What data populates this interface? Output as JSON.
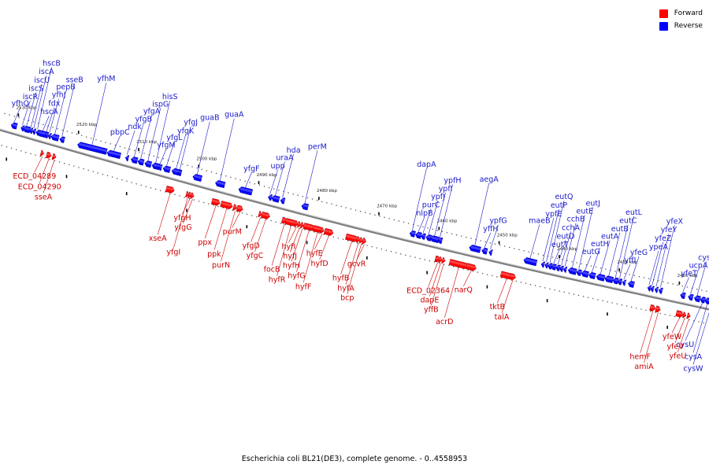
{
  "caption": "Escherichia coli BL21(DE3), complete genome. - 0..4558953",
  "legend": [
    {
      "label": "Forward",
      "color": "#ff0000"
    },
    {
      "label": "Reverse",
      "color": "#0000ff"
    }
  ],
  "colors": {
    "forward": "#ff0000",
    "reverse": "#0000ff",
    "forward_label": "#cc0000",
    "reverse_label": "#1a1acc",
    "backbone": "#7a7a7a"
  },
  "genome_range_kbp": [
    2414,
    2532
  ],
  "kbp_ticks": [
    "2530 kbp",
    "2520 kbp",
    "2510 kbp",
    "2500 kbp",
    "2490 kbp",
    "2480 kbp",
    "2470 kbp",
    "2460 kbp",
    "2450 kbp",
    "2440 kbp",
    "2430 kbp",
    "2420 kbp"
  ],
  "reverse_genes": [
    {
      "name": "yfhQ",
      "pos": 2530.0,
      "len": 1.0
    },
    {
      "name": "iscR",
      "pos": 2528.6,
      "len": 0.5
    },
    {
      "name": "iscS",
      "pos": 2527.9,
      "len": 1.2
    },
    {
      "name": "iscU",
      "pos": 2527.2,
      "len": 0.4
    },
    {
      "name": "iscA",
      "pos": 2526.7,
      "len": 0.3
    },
    {
      "name": "hscB",
      "pos": 2526.1,
      "len": 0.5
    },
    {
      "name": "hscA",
      "pos": 2525.2,
      "len": 1.8
    },
    {
      "name": "fdx",
      "pos": 2524.6,
      "len": 0.3
    },
    {
      "name": "yfhJ",
      "pos": 2524.1,
      "len": 0.3
    },
    {
      "name": "pepB",
      "pos": 2523.2,
      "len": 1.3
    },
    {
      "name": "sseB",
      "pos": 2522.0,
      "len": 0.8
    },
    {
      "name": "yfhM",
      "pos": 2517.0,
      "len": 5.0
    },
    {
      "name": "pbpC",
      "pos": 2513.4,
      "len": 2.3
    },
    {
      "name": "ndk",
      "pos": 2511.2,
      "len": 0.4
    },
    {
      "name": "yfgB",
      "pos": 2510.0,
      "len": 1.1
    },
    {
      "name": "yfgA",
      "pos": 2508.9,
      "len": 1.0
    },
    {
      "name": "ispG",
      "pos": 2507.7,
      "len": 1.1
    },
    {
      "name": "hisS",
      "pos": 2506.4,
      "len": 1.3
    },
    {
      "name": "yfgM",
      "pos": 2505.7,
      "len": 0.6
    },
    {
      "name": "yfgL",
      "pos": 2504.6,
      "len": 1.2
    },
    {
      "name": "yfgK",
      "pos": 2503.0,
      "len": 1.5
    },
    {
      "name": "yfgJ",
      "pos": 2502.4,
      "len": 0.3
    },
    {
      "name": "guaB",
      "pos": 2499.5,
      "len": 1.5
    },
    {
      "name": "guaA",
      "pos": 2495.7,
      "len": 1.6
    },
    {
      "name": "yfgF",
      "pos": 2491.5,
      "len": 2.3
    },
    {
      "name": "upp",
      "pos": 2487.4,
      "len": 0.6
    },
    {
      "name": "uraA",
      "pos": 2486.5,
      "len": 1.3
    },
    {
      "name": "hda",
      "pos": 2485.3,
      "len": 0.7
    },
    {
      "name": "perM",
      "pos": 2481.6,
      "len": 1.1
    },
    {
      "name": "dapA",
      "pos": 2463.7,
      "len": 0.9
    },
    {
      "name": "nlpB",
      "pos": 2462.7,
      "len": 1.0
    },
    {
      "name": "purC",
      "pos": 2461.9,
      "len": 0.7
    },
    {
      "name": "ypfJ",
      "pos": 2461.0,
      "len": 0.9
    },
    {
      "name": "ypfI",
      "pos": 2460.0,
      "len": 1.5
    },
    {
      "name": "ypfH",
      "pos": 2459.1,
      "len": 0.7
    },
    {
      "name": "aegA",
      "pos": 2453.3,
      "len": 1.9
    },
    {
      "name": "yffH",
      "pos": 2451.7,
      "len": 0.9
    },
    {
      "name": "ypfG",
      "pos": 2450.7,
      "len": 0.4
    },
    {
      "name": "maeB",
      "pos": 2444.1,
      "len": 2.2
    },
    {
      "name": "ypfE",
      "pos": 2442.0,
      "len": 0.4
    },
    {
      "name": "eutP",
      "pos": 2441.4,
      "len": 0.5
    },
    {
      "name": "eutQ",
      "pos": 2440.8,
      "len": 0.7
    },
    {
      "name": "eutT",
      "pos": 2440.2,
      "len": 0.8
    },
    {
      "name": "eutD",
      "pos": 2439.5,
      "len": 0.7
    },
    {
      "name": "cchA",
      "pos": 2438.9,
      "len": 0.6
    },
    {
      "name": "cchB",
      "pos": 2438.3,
      "len": 0.5
    },
    {
      "name": "eutE",
      "pos": 2437.1,
      "len": 1.4
    },
    {
      "name": "eutJ",
      "pos": 2436.0,
      "len": 0.8
    },
    {
      "name": "eutG",
      "pos": 2435.0,
      "len": 1.2
    },
    {
      "name": "eutH",
      "pos": 2433.8,
      "len": 1.1
    },
    {
      "name": "eutA",
      "pos": 2432.4,
      "len": 1.4
    },
    {
      "name": "eutB",
      "pos": 2431.0,
      "len": 1.4
    },
    {
      "name": "eutC",
      "pos": 2429.9,
      "len": 0.9
    },
    {
      "name": "eutL",
      "pos": 2429.2,
      "len": 0.7
    },
    {
      "name": "yffI",
      "pos": 2428.5,
      "len": 0.5
    },
    {
      "name": "yfeG",
      "pos": 2427.3,
      "len": 1.0
    },
    {
      "name": "ypeA",
      "pos": 2424.3,
      "len": 0.4
    },
    {
      "name": "yfeZ",
      "pos": 2423.8,
      "len": 0.4
    },
    {
      "name": "yfeY",
      "pos": 2423.1,
      "len": 0.5
    },
    {
      "name": "yfeX",
      "pos": 2422.4,
      "len": 0.6
    },
    {
      "name": "yfeT",
      "pos": 2418.7,
      "len": 0.8
    },
    {
      "name": "ucpA",
      "pos": 2417.4,
      "len": 0.8
    },
    {
      "name": "cysP",
      "pos": 2416.3,
      "len": 1.0
    }
  ],
  "forward_genes": [
    {
      "name": "ECD_04289",
      "pos": 2524.5,
      "len": 0.5
    },
    {
      "name": "ECD_04290",
      "pos": 2523.4,
      "len": 0.8
    },
    {
      "name": "sseA",
      "pos": 2522.5,
      "len": 0.6
    },
    {
      "name": "xseA",
      "pos": 2503.2,
      "len": 1.4
    },
    {
      "name": "yfgI",
      "pos": 2500.3,
      "len": 0.2
    },
    {
      "name": "yfgH",
      "pos": 2499.9,
      "len": 0.2
    },
    {
      "name": "yfgG",
      "pos": 2499.5,
      "len": 0.2
    },
    {
      "name": "ppx",
      "pos": 2495.6,
      "len": 1.4
    },
    {
      "name": "ppk",
      "pos": 2493.8,
      "len": 2.0
    },
    {
      "name": "purN",
      "pos": 2492.4,
      "len": 0.6
    },
    {
      "name": "purM",
      "pos": 2491.6,
      "len": 1.0
    },
    {
      "name": "yfgD",
      "pos": 2488.2,
      "len": 0.4
    },
    {
      "name": "yfgC",
      "pos": 2487.3,
      "len": 1.4
    },
    {
      "name": "focB",
      "pos": 2484.2,
      "len": 0.8
    },
    {
      "name": "hyfR",
      "pos": 2483.1,
      "len": 1.8
    },
    {
      "name": "hyfI",
      "pos": 2482.2,
      "len": 0.6
    },
    {
      "name": "hyfJ",
      "pos": 2481.7,
      "len": 0.4
    },
    {
      "name": "hyfH",
      "pos": 2481.2,
      "len": 0.5
    },
    {
      "name": "hyfG",
      "pos": 2480.1,
      "len": 1.8
    },
    {
      "name": "hyfF",
      "pos": 2478.7,
      "len": 1.5
    },
    {
      "name": "hyfE",
      "pos": 2477.9,
      "len": 0.6
    },
    {
      "name": "hyfD",
      "pos": 2476.8,
      "len": 1.5
    },
    {
      "name": "hyfB",
      "pos": 2473.0,
      "len": 2.0
    },
    {
      "name": "hyfA",
      "pos": 2471.9,
      "len": 0.6
    },
    {
      "name": "bcp",
      "pos": 2471.4,
      "len": 0.5
    },
    {
      "name": "gcvR",
      "pos": 2470.9,
      "len": 0.6
    },
    {
      "name": "ECD_02364",
      "pos": 2458.7,
      "len": 0.8
    },
    {
      "name": "dapE",
      "pos": 2458.2,
      "len": 0.4
    },
    {
      "name": "yffB",
      "pos": 2457.7,
      "len": 0.4
    },
    {
      "name": "acrD",
      "pos": 2455.2,
      "len": 3.1
    },
    {
      "name": "narQ",
      "pos": 2453.1,
      "len": 1.7
    },
    {
      "name": "tktB",
      "pos": 2447.2,
      "len": 2.0
    },
    {
      "name": "talA",
      "pos": 2446.2,
      "len": 1.0
    },
    {
      "name": "hemF",
      "pos": 2422.9,
      "len": 0.9
    },
    {
      "name": "amiA",
      "pos": 2422.0,
      "len": 0.8
    },
    {
      "name": "yfeW",
      "pos": 2418.4,
      "len": 1.2
    },
    {
      "name": "yfeV",
      "pos": 2417.6,
      "len": 0.5
    },
    {
      "name": "yfeU",
      "pos": 2416.9,
      "len": 0.5
    }
  ],
  "below_reverse_labels": [
    {
      "name": "cysU",
      "pos": 2415.4,
      "len": 0.8
    },
    {
      "name": "cysA",
      "pos": 2414.6,
      "len": 0.9
    },
    {
      "name": "cysW",
      "pos": 2413.9,
      "len": 0.8
    }
  ]
}
